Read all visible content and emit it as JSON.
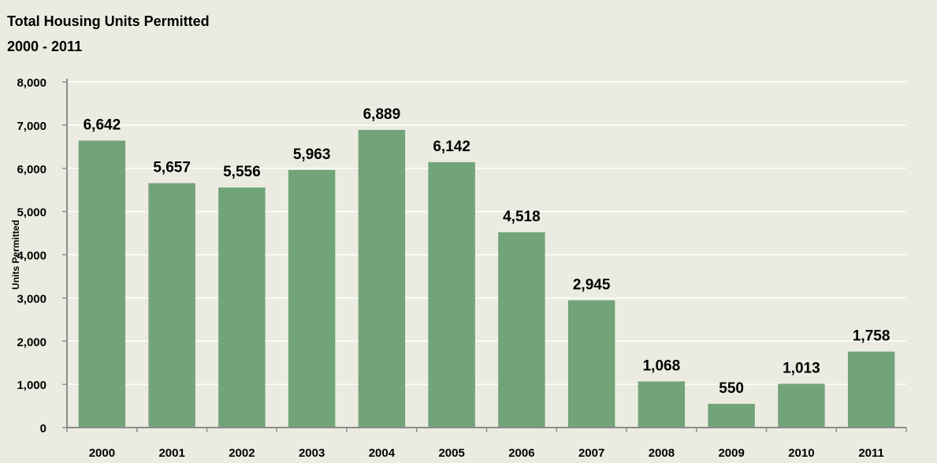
{
  "chart_data": {
    "type": "bar",
    "title": "Total Housing Units Permitted",
    "subtitle": "2000 - 2011",
    "ylabel": "Units Permitted",
    "xlabel": "",
    "categories": [
      "2000",
      "2001",
      "2002",
      "2003",
      "2004",
      "2005",
      "2006",
      "2007",
      "2008",
      "2009",
      "2010",
      "2011"
    ],
    "values": [
      6642,
      5657,
      5556,
      5963,
      6889,
      6142,
      4518,
      2945,
      1068,
      550,
      1013,
      1758
    ],
    "data_labels": [
      "6,642",
      "5,657",
      "5,556",
      "5,963",
      "6,889",
      "6,142",
      "4,518",
      "2,945",
      "1,068",
      "550",
      "1,013",
      "1,758"
    ],
    "y_ticks": [
      0,
      1000,
      2000,
      3000,
      4000,
      5000,
      6000,
      7000,
      8000
    ],
    "y_tick_labels": [
      "0",
      "1,000",
      "2,000",
      "3,000",
      "4,000",
      "5,000",
      "6,000",
      "7,000",
      "8,000"
    ],
    "ylim": [
      0,
      8000
    ],
    "grid": true,
    "legend": "none",
    "colors": {
      "bar": "#72A479",
      "background": "#ECEBE1",
      "gridline": "#FFFFFF",
      "axis": "#8C8C8C"
    }
  }
}
